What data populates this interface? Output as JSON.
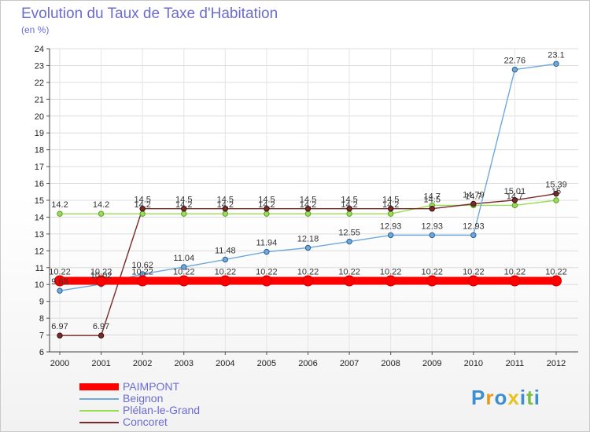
{
  "chart_data": {
    "type": "line",
    "title": "Evolution du Taux de Taxe d'Habitation",
    "subtitle": "(en %)",
    "categories": [
      "2000",
      "2001",
      "2002",
      "2003",
      "2004",
      "2005",
      "2006",
      "2007",
      "2008",
      "2009",
      "2010",
      "2011",
      "2012"
    ],
    "ylim": [
      6,
      24
    ],
    "yticks": [
      6,
      7,
      8,
      9,
      10,
      11,
      12,
      13,
      14,
      15,
      16,
      17,
      18,
      19,
      20,
      21,
      22,
      23,
      24
    ],
    "grid": true,
    "legend_position": "bottom-left",
    "series": [
      {
        "name": "PAIMPONT",
        "color": "#ff0000",
        "values": [
          10.22,
          10.22,
          10.22,
          10.22,
          10.22,
          10.22,
          10.22,
          10.22,
          10.22,
          10.22,
          10.22,
          10.22,
          10.22
        ],
        "labels": [
          "10.22",
          "10.22",
          "10.22",
          "10.22",
          "10.22",
          "10.22",
          "10.22",
          "10.22",
          "10.22",
          "10.22",
          "10.22",
          "10.22",
          "10.22"
        ]
      },
      {
        "name": "Beignon",
        "color": "#6fa8dc",
        "values": [
          9.63,
          10.02,
          10.62,
          11.04,
          11.48,
          11.94,
          12.18,
          12.55,
          12.93,
          12.93,
          12.93,
          22.76,
          23.1
        ],
        "labels": [
          "9.63",
          "10.02",
          "10.62",
          "11.04",
          "11.48",
          "11.94",
          "12.18",
          "12.55",
          "12.93",
          "12.93",
          "12.93",
          "22.76",
          "23.1"
        ]
      },
      {
        "name": "Plélan-le-Grand",
        "color": "#99dd55",
        "values": [
          14.2,
          14.2,
          14.2,
          14.2,
          14.2,
          14.2,
          14.2,
          14.2,
          14.2,
          14.7,
          14.7,
          14.7,
          15
        ],
        "labels": [
          "14.2",
          "14.2",
          "14.2",
          "14.2",
          "14.2",
          "14.2",
          "14.2",
          "14.2",
          "14.2",
          "14.7",
          "14.7",
          "14.7",
          "15"
        ]
      },
      {
        "name": "Concoret",
        "color": "#7a2a2a",
        "values": [
          6.97,
          6.97,
          14.5,
          14.5,
          14.5,
          14.5,
          14.5,
          14.5,
          14.5,
          14.5,
          14.79,
          15.01,
          15.39
        ],
        "labels": [
          "6.97",
          "6.97",
          "14.5",
          "14.5",
          "14.5",
          "14.5",
          "14.5",
          "14.5",
          "14.5",
          "14.5",
          "14.79",
          "15.01",
          "15.39"
        ]
      }
    ]
  },
  "logo": {
    "letters": [
      "P",
      "r",
      "o",
      "x",
      "i",
      "t",
      "i"
    ],
    "colors": [
      "#3b8fd1",
      "#e89a1c",
      "#3b8fd1",
      "#e8c21c",
      "#3b8fd1",
      "#7ac143",
      "#3b8fd1"
    ]
  }
}
